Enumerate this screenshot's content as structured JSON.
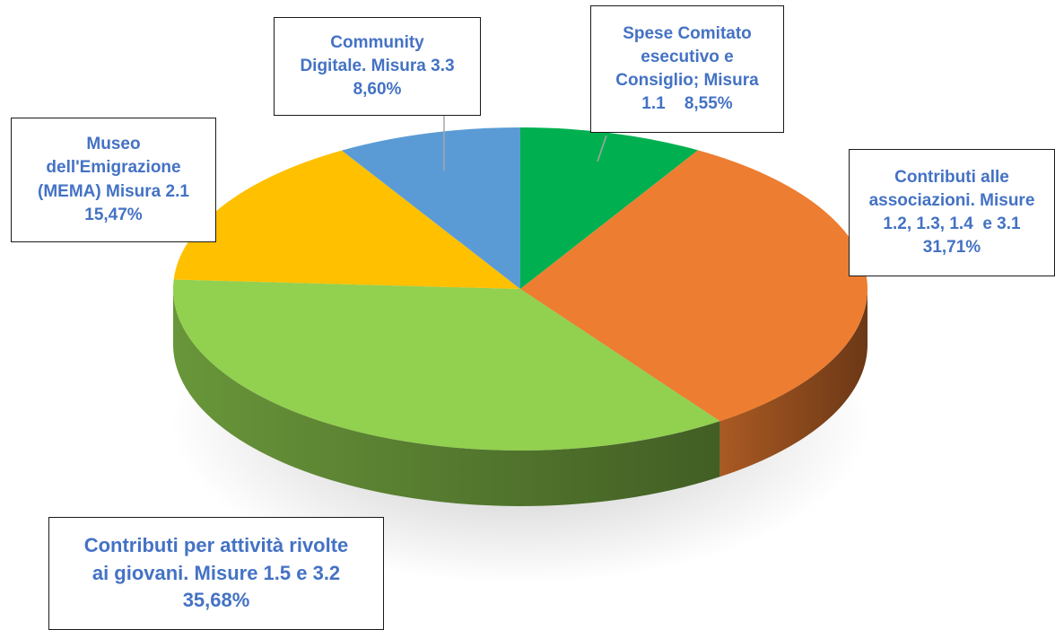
{
  "chart_data": {
    "type": "pie",
    "title": "",
    "slices": [
      {
        "label_lines": [
          "Spese Comitato",
          "esecutivo e",
          "Consiglio; Misura",
          "1.1    8,55%"
        ],
        "value": 8.55,
        "color": "#00B050"
      },
      {
        "label_lines": [
          "Contributi alle",
          "associazioni. Misure",
          "1.2, 1.3, 1.4  e 3.1",
          "31,71%"
        ],
        "value": 31.71,
        "color": "#ED7D31"
      },
      {
        "label_lines": [
          "Contributi per attività rivolte",
          "ai giovani. Misure 1.5 e 3.2",
          "35,68%"
        ],
        "value": 35.68,
        "color": "#92D050"
      },
      {
        "label_lines": [
          "Museo",
          "dell'Emigrazione",
          "(MEMA) Misura 2.1",
          "15,47%"
        ],
        "value": 15.47,
        "color": "#FFC000"
      },
      {
        "label_lines": [
          "Community",
          "Digitale. Misura 3.3",
          "8,60%"
        ],
        "value": 8.6,
        "color": "#5B9BD5"
      }
    ],
    "label_color": "#4472C4",
    "legend": "none",
    "style": "3d-pie"
  }
}
